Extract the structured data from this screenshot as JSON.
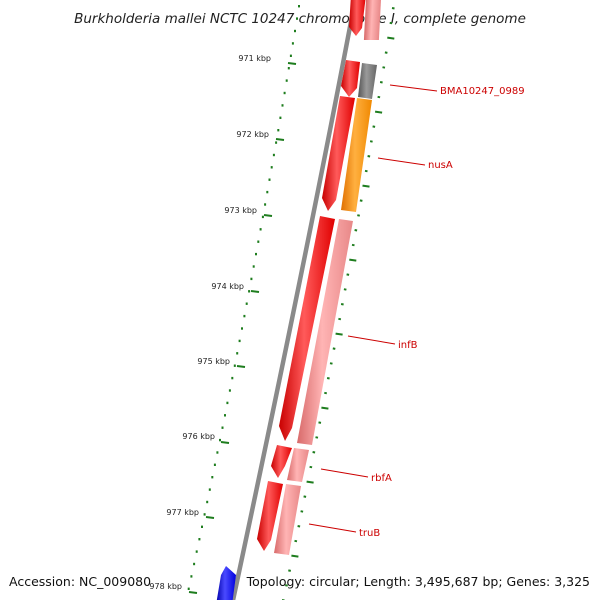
{
  "title": "Burkholderia mallei NCTC 10247 chromosome I, complete genome",
  "accession_text": "Accession: NC_009080",
  "topology_text": "Topology: circular; Length: 3,495,687 bp; Genes: 3,325",
  "scale_ticks": [
    "971 kbp",
    "972 kbp",
    "973 kbp",
    "974 kbp",
    "975 kbp",
    "976 kbp",
    "977 kbp",
    "978 kbp"
  ],
  "gene_labels": [
    "BMA10247_0989",
    "nusA",
    "infB",
    "rbfA",
    "truB"
  ],
  "colors": {
    "forward_cds": "#ff0000",
    "forward_cds_highlight": "#ff7a7a",
    "gene_track": "#f08080",
    "nusA": "#ff8c00",
    "hypothetical": "#707070",
    "backbone": "#8a8a8a",
    "ticks": "#1e7d1e",
    "other_strand": "#0000ee",
    "label_text": "#cc0000"
  }
}
